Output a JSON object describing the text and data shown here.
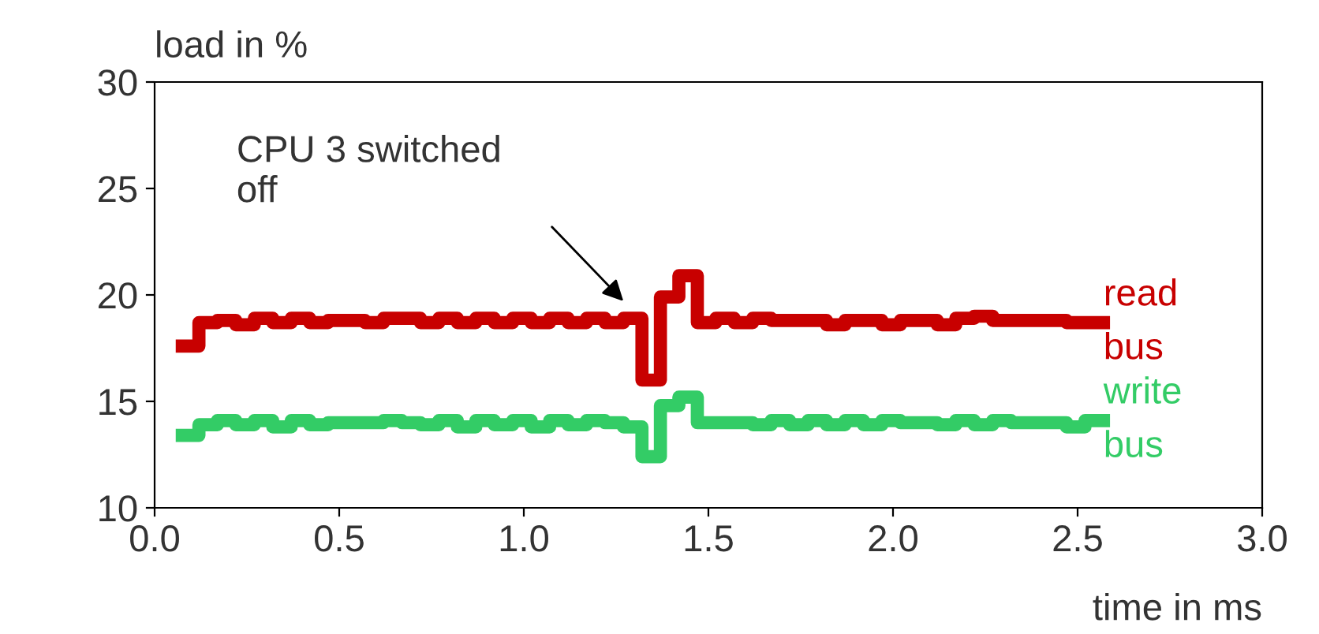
{
  "chart_data": {
    "type": "step",
    "xlabel": "time in ms",
    "ylabel": "load in %",
    "x": [
      0.075,
      0.12,
      0.17,
      0.22,
      0.27,
      0.32,
      0.37,
      0.42,
      0.47,
      0.52,
      0.57,
      0.62,
      0.67,
      0.72,
      0.77,
      0.82,
      0.87,
      0.92,
      0.97,
      1.02,
      1.07,
      1.12,
      1.17,
      1.22,
      1.27,
      1.32,
      1.37,
      1.42,
      1.47,
      1.52,
      1.57,
      1.62,
      1.67,
      1.72,
      1.77,
      1.82,
      1.87,
      1.92,
      1.97,
      2.02,
      2.07,
      2.12,
      2.17,
      2.22,
      2.27,
      2.32,
      2.37,
      2.42,
      2.47,
      2.52,
      2.57
    ],
    "series": [
      {
        "name": "read\nbus",
        "color": "#c80000",
        "values": [
          17.6,
          18.7,
          18.8,
          18.6,
          18.9,
          18.7,
          18.9,
          18.7,
          18.8,
          18.8,
          18.7,
          18.9,
          18.9,
          18.7,
          18.9,
          18.7,
          18.9,
          18.7,
          18.9,
          18.7,
          18.9,
          18.7,
          18.9,
          18.7,
          18.9,
          16.0,
          19.9,
          20.9,
          18.7,
          18.9,
          18.7,
          18.9,
          18.8,
          18.8,
          18.8,
          18.6,
          18.8,
          18.8,
          18.6,
          18.8,
          18.8,
          18.6,
          18.9,
          19.0,
          18.8,
          18.8,
          18.8,
          18.8,
          18.7,
          18.7,
          18.7
        ]
      },
      {
        "name": "write\nbus",
        "color": "#33cc66",
        "values": [
          13.4,
          13.9,
          14.1,
          13.9,
          14.1,
          13.8,
          14.1,
          13.9,
          14.0,
          14.0,
          14.0,
          14.1,
          14.0,
          13.9,
          14.1,
          13.8,
          14.1,
          13.9,
          14.1,
          13.8,
          14.1,
          13.9,
          14.1,
          14.0,
          13.8,
          12.4,
          14.8,
          15.2,
          14.0,
          14.0,
          14.0,
          13.9,
          14.1,
          13.9,
          14.1,
          13.9,
          14.1,
          13.9,
          14.1,
          14.0,
          14.0,
          13.9,
          14.1,
          13.9,
          14.1,
          14.0,
          14.0,
          14.0,
          13.8,
          14.1,
          14.1
        ]
      }
    ],
    "xlim": [
      0.0,
      3.0
    ],
    "ylim": [
      10,
      30
    ],
    "xticks": [
      {
        "value": 0,
        "label": "0.0"
      },
      0.5,
      {
        "value": 1,
        "label": "1.0"
      },
      1.5,
      {
        "value": 2,
        "label": "2.0"
      },
      2.5,
      {
        "value": 3,
        "label": "3.0"
      }
    ],
    "yticks": [
      10,
      15,
      20,
      25,
      30
    ],
    "annotations": [
      "CPU 3 switched\noff"
    ],
    "grid": false,
    "legend": false,
    "line_style": "solid",
    "marker": "none"
  }
}
